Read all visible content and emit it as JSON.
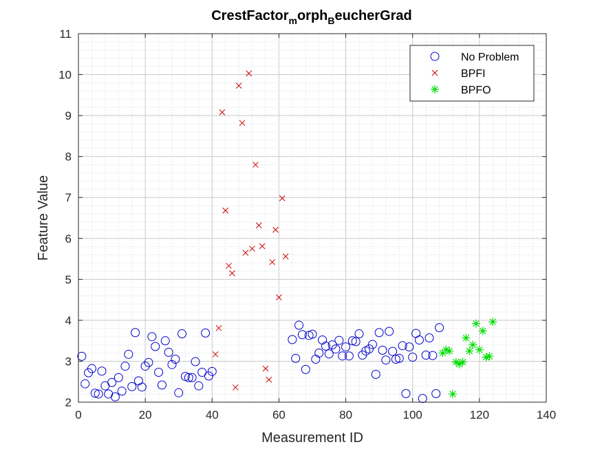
{
  "chart_data": {
    "type": "scatter",
    "title_parts": [
      {
        "text": "CrestFactor",
        "sub": false
      },
      {
        "text": "m",
        "sub": true
      },
      {
        "text": "orph",
        "sub": false
      },
      {
        "text": "B",
        "sub": true
      },
      {
        "text": "eucherGrad",
        "sub": false
      }
    ],
    "xlabel": "Measurement ID",
    "ylabel": "Feature Value",
    "xlim": [
      0,
      140
    ],
    "ylim": [
      2,
      11
    ],
    "xticks": [
      0,
      20,
      40,
      60,
      80,
      100,
      120,
      140
    ],
    "yticks": [
      2,
      3,
      4,
      5,
      6,
      7,
      8,
      9,
      10,
      11
    ],
    "grid": "minor dotted",
    "legend_position": "top-right",
    "series": [
      {
        "name": "No Problem",
        "marker": "circle",
        "color": "#0000CC",
        "points": [
          [
            1,
            3.12
          ],
          [
            2,
            2.45
          ],
          [
            3,
            2.72
          ],
          [
            4,
            2.82
          ],
          [
            5,
            2.22
          ],
          [
            6,
            2.2
          ],
          [
            7,
            2.76
          ],
          [
            8,
            2.4
          ],
          [
            9,
            2.2
          ],
          [
            10,
            2.48
          ],
          [
            11,
            2.13
          ],
          [
            12,
            2.6
          ],
          [
            13,
            2.27
          ],
          [
            14,
            2.88
          ],
          [
            15,
            3.17
          ],
          [
            16,
            2.38
          ],
          [
            17,
            3.7
          ],
          [
            18,
            2.52
          ],
          [
            19,
            2.37
          ],
          [
            20,
            2.88
          ],
          [
            21,
            2.97
          ],
          [
            22,
            3.6
          ],
          [
            23,
            3.36
          ],
          [
            24,
            2.73
          ],
          [
            25,
            2.42
          ],
          [
            26,
            3.5
          ],
          [
            27,
            3.22
          ],
          [
            28,
            2.92
          ],
          [
            29,
            3.05
          ],
          [
            30,
            2.23
          ],
          [
            31,
            3.67
          ],
          [
            32,
            2.63
          ],
          [
            33,
            2.6
          ],
          [
            34,
            2.6
          ],
          [
            35,
            2.99
          ],
          [
            36,
            2.4
          ],
          [
            37,
            2.73
          ],
          [
            38,
            3.69
          ],
          [
            39,
            2.64
          ],
          [
            40,
            2.75
          ],
          [
            64,
            3.53
          ],
          [
            65,
            3.07
          ],
          [
            66,
            3.88
          ],
          [
            67,
            3.65
          ],
          [
            68,
            2.8
          ],
          [
            69,
            3.63
          ],
          [
            70,
            3.66
          ],
          [
            71,
            3.05
          ],
          [
            72,
            3.2
          ],
          [
            73,
            3.52
          ],
          [
            74,
            3.37
          ],
          [
            75,
            3.18
          ],
          [
            76,
            3.4
          ],
          [
            77,
            3.3
          ],
          [
            78,
            3.51
          ],
          [
            79,
            3.13
          ],
          [
            80,
            3.35
          ],
          [
            81,
            3.13
          ],
          [
            82,
            3.5
          ],
          [
            83,
            3.48
          ],
          [
            84,
            3.67
          ],
          [
            85,
            3.15
          ],
          [
            86,
            3.25
          ],
          [
            87,
            3.3
          ],
          [
            88,
            3.41
          ],
          [
            89,
            2.68
          ],
          [
            90,
            3.7
          ],
          [
            91,
            3.27
          ],
          [
            92,
            3.03
          ],
          [
            93,
            3.73
          ],
          [
            94,
            3.24
          ],
          [
            95,
            3.05
          ],
          [
            96,
            3.07
          ],
          [
            97,
            3.38
          ],
          [
            98,
            2.21
          ],
          [
            99,
            3.35
          ],
          [
            100,
            3.1
          ],
          [
            101,
            3.68
          ],
          [
            102,
            3.52
          ],
          [
            103,
            2.09
          ],
          [
            104,
            3.15
          ],
          [
            105,
            3.57
          ],
          [
            106,
            3.14
          ],
          [
            107,
            2.21
          ],
          [
            108,
            3.82
          ]
        ]
      },
      {
        "name": "BPFI",
        "marker": "x",
        "color": "#CC0000",
        "points": [
          [
            41,
            3.17
          ],
          [
            42,
            3.81
          ],
          [
            43,
            9.08
          ],
          [
            44,
            6.68
          ],
          [
            45,
            5.33
          ],
          [
            46,
            5.15
          ],
          [
            47,
            2.36
          ],
          [
            48,
            9.73
          ],
          [
            49,
            8.82
          ],
          [
            50,
            5.65
          ],
          [
            51,
            10.03
          ],
          [
            52,
            5.75
          ],
          [
            53,
            7.8
          ],
          [
            54,
            6.32
          ],
          [
            55,
            5.81
          ],
          [
            56,
            2.82
          ],
          [
            57,
            2.55
          ],
          [
            58,
            5.42
          ],
          [
            59,
            6.21
          ],
          [
            60,
            4.56
          ],
          [
            61,
            6.98
          ],
          [
            62,
            5.56
          ]
        ]
      },
      {
        "name": "BPFO",
        "marker": "asterisk",
        "color": "#00DD00",
        "points": [
          [
            109,
            3.2
          ],
          [
            110,
            3.28
          ],
          [
            111,
            3.25
          ],
          [
            112,
            2.2
          ],
          [
            113,
            2.98
          ],
          [
            114,
            2.93
          ],
          [
            115,
            2.98
          ],
          [
            116,
            3.57
          ],
          [
            117,
            3.25
          ],
          [
            118,
            3.4
          ],
          [
            119,
            3.92
          ],
          [
            120,
            3.28
          ],
          [
            121,
            3.74
          ],
          [
            122,
            3.1
          ],
          [
            123,
            3.12
          ],
          [
            124,
            3.96
          ]
        ]
      }
    ]
  }
}
